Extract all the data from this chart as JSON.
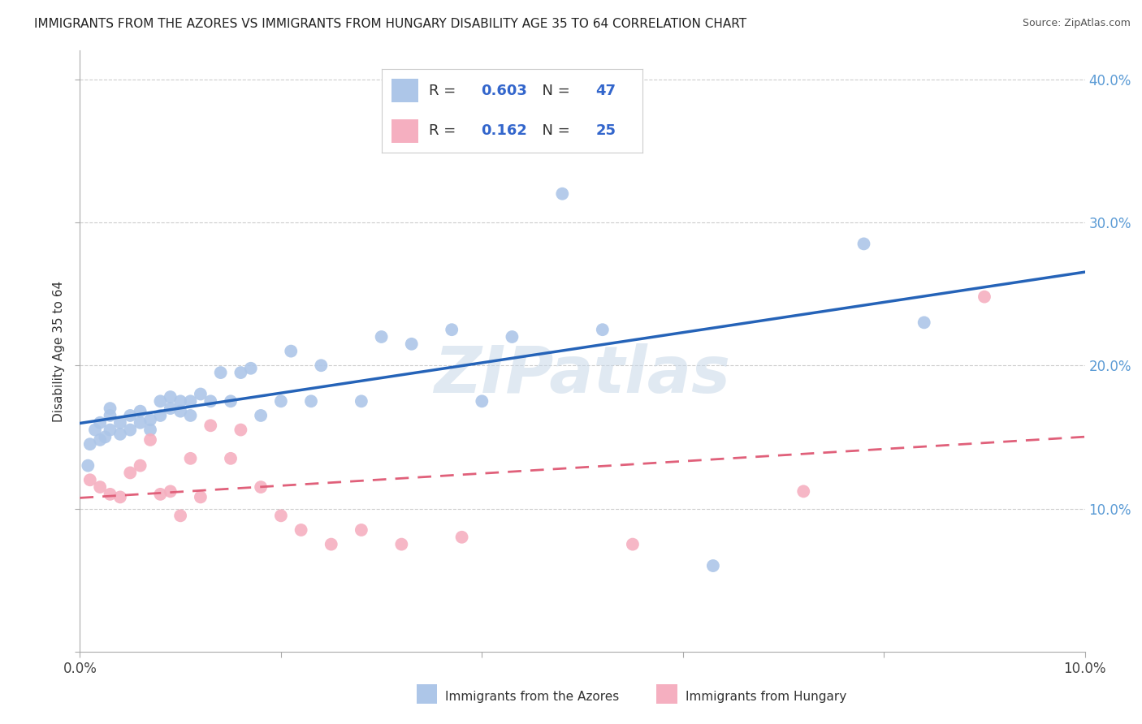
{
  "title": "IMMIGRANTS FROM THE AZORES VS IMMIGRANTS FROM HUNGARY DISABILITY AGE 35 TO 64 CORRELATION CHART",
  "source": "Source: ZipAtlas.com",
  "ylabel": "Disability Age 35 to 64",
  "xlim": [
    0.0,
    0.1
  ],
  "ylim": [
    0.0,
    0.42
  ],
  "azores_R": "0.603",
  "azores_N": "47",
  "hungary_R": "0.162",
  "hungary_N": "25",
  "azores_color": "#adc6e8",
  "hungary_color": "#f5afc0",
  "azores_line_color": "#2563b8",
  "hungary_line_color": "#e0607a",
  "tick_color": "#5b9bd5",
  "title_fontsize": 11,
  "legend_fontsize": 13,
  "axis_label_fontsize": 11,
  "tick_fontsize": 12,
  "azores_x": [
    0.0008,
    0.001,
    0.0015,
    0.002,
    0.002,
    0.0025,
    0.003,
    0.003,
    0.003,
    0.004,
    0.004,
    0.005,
    0.005,
    0.006,
    0.006,
    0.007,
    0.007,
    0.008,
    0.008,
    0.009,
    0.009,
    0.01,
    0.01,
    0.011,
    0.011,
    0.012,
    0.013,
    0.014,
    0.015,
    0.016,
    0.017,
    0.018,
    0.02,
    0.021,
    0.023,
    0.024,
    0.028,
    0.03,
    0.033,
    0.037,
    0.04,
    0.043,
    0.048,
    0.052,
    0.063,
    0.078,
    0.084
  ],
  "azores_y": [
    0.13,
    0.145,
    0.155,
    0.148,
    0.16,
    0.15,
    0.155,
    0.165,
    0.17,
    0.152,
    0.16,
    0.155,
    0.165,
    0.16,
    0.168,
    0.155,
    0.162,
    0.165,
    0.175,
    0.17,
    0.178,
    0.168,
    0.175,
    0.175,
    0.165,
    0.18,
    0.175,
    0.195,
    0.175,
    0.195,
    0.198,
    0.165,
    0.175,
    0.21,
    0.175,
    0.2,
    0.175,
    0.22,
    0.215,
    0.225,
    0.175,
    0.22,
    0.32,
    0.225,
    0.06,
    0.285,
    0.23
  ],
  "hungary_x": [
    0.001,
    0.002,
    0.003,
    0.004,
    0.005,
    0.006,
    0.007,
    0.008,
    0.009,
    0.01,
    0.011,
    0.012,
    0.013,
    0.015,
    0.016,
    0.018,
    0.02,
    0.022,
    0.025,
    0.028,
    0.032,
    0.038,
    0.055,
    0.072,
    0.09
  ],
  "hungary_y": [
    0.12,
    0.115,
    0.11,
    0.108,
    0.125,
    0.13,
    0.148,
    0.11,
    0.112,
    0.095,
    0.135,
    0.108,
    0.158,
    0.135,
    0.155,
    0.115,
    0.095,
    0.085,
    0.075,
    0.085,
    0.075,
    0.08,
    0.075,
    0.112,
    0.248
  ],
  "watermark": "ZIPatlas",
  "watermark_color": "#c8d8e8"
}
